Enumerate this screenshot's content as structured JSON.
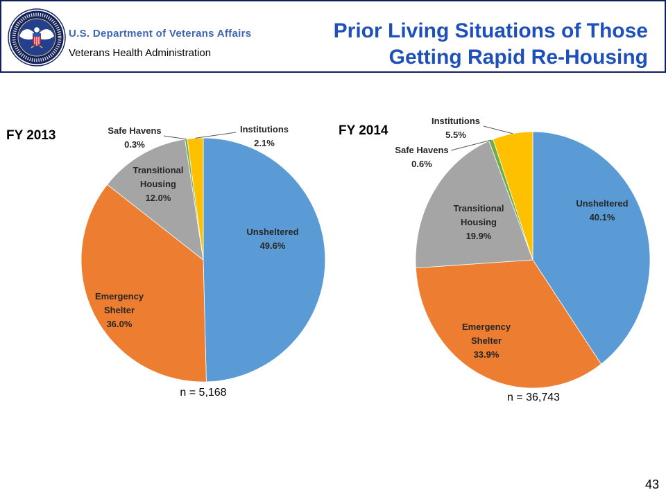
{
  "header": {
    "department": "U.S. Department of Veterans Affairs",
    "administration": "Veterans Health Administration",
    "title_lines": [
      "Prior Living Situations of Those",
      "Getting Rapid Re-Housing"
    ],
    "logo_icon": "va-seal-icon"
  },
  "colors": {
    "header_border": "#0d1f5c",
    "title": "#1d50b8",
    "department": "#3f66b2"
  },
  "page_number": "43",
  "chart_data": [
    {
      "type": "pie",
      "title": "FY 2013",
      "note": "n = 5,168",
      "categories": [
        "Unsheltered",
        "Emergency Shelter",
        "Transitional Housing",
        "Safe Havens",
        "Institutions"
      ],
      "values": [
        49.6,
        36.0,
        12.0,
        0.3,
        2.1
      ],
      "value_labels": [
        "49.6%",
        "36.0%",
        "12.0%",
        "0.3%",
        "2.1%"
      ],
      "colors": [
        "#5b9bd5",
        "#ed7d31",
        "#a5a5a5",
        "#70ad47",
        "#ffc000"
      ]
    },
    {
      "type": "pie",
      "title": "FY 2014",
      "note": "n = 36,743",
      "categories": [
        "Unsheltered",
        "Emergency Shelter",
        "Transitional Housing",
        "Safe Havens",
        "Institutions"
      ],
      "values": [
        40.1,
        33.9,
        19.9,
        0.6,
        5.5
      ],
      "value_labels": [
        "40.1%",
        "33.9%",
        "19.9%",
        "0.6%",
        "5.5%"
      ],
      "colors": [
        "#5b9bd5",
        "#ed7d31",
        "#a5a5a5",
        "#70ad47",
        "#ffc000"
      ]
    }
  ]
}
